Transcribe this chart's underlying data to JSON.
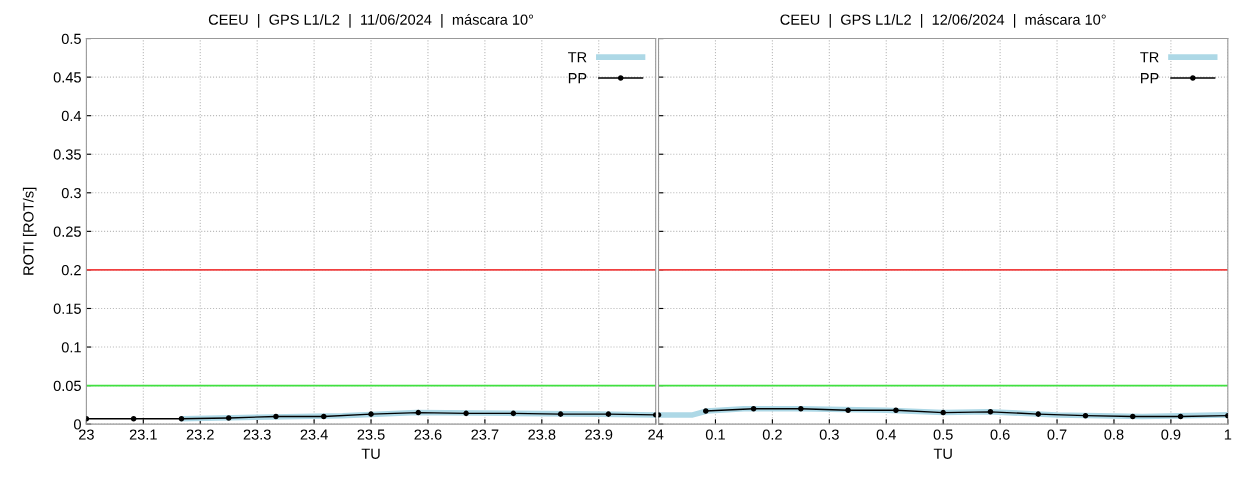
{
  "chart_data": [
    {
      "type": "line",
      "title": "CEEU  |  GPS L1/L2  |  11/06/2024  |  máscara 10°",
      "xlabel": "TU",
      "ylabel": "ROTI [ROT/s]",
      "xlim": [
        23,
        24
      ],
      "xticks": [
        23,
        23.1,
        23.2,
        23.3,
        23.4,
        23.5,
        23.6,
        23.7,
        23.8,
        23.9,
        24
      ],
      "ylim": [
        0,
        0.5
      ],
      "yticks": [
        0,
        0.05,
        0.1,
        0.15,
        0.2,
        0.25,
        0.3,
        0.35,
        0.4,
        0.45,
        0.5
      ],
      "grid": true,
      "legend": "top right",
      "ref_lines": [
        {
          "axis": "y",
          "value": 0.2,
          "color": "#f04040"
        },
        {
          "axis": "y",
          "value": 0.05,
          "color": "#40e040"
        }
      ],
      "series": [
        {
          "name": "TR",
          "color": "#add8e6",
          "marker": "none",
          "x": [
            23.17,
            23.3,
            23.45,
            23.58,
            23.75,
            23.9,
            24
          ],
          "values": [
            0.007,
            0.009,
            0.011,
            0.015,
            0.014,
            0.013,
            0.012
          ]
        },
        {
          "name": "PP",
          "color": "#000000",
          "marker": "circle",
          "x": [
            23.0,
            23.083,
            23.167,
            23.25,
            23.333,
            23.417,
            23.5,
            23.583,
            23.667,
            23.75,
            23.833,
            23.917,
            24.0
          ],
          "values": [
            0.007,
            0.007,
            0.007,
            0.008,
            0.01,
            0.01,
            0.013,
            0.015,
            0.014,
            0.014,
            0.013,
            0.013,
            0.012
          ]
        }
      ]
    },
    {
      "type": "line",
      "title": "CEEU  |  GPS L1/L2  |  12/06/2024  |  máscara 10°",
      "xlabel": "TU",
      "xlim": [
        0,
        1
      ],
      "xticks": [
        {
          "value": 0,
          "label": null
        },
        0.1,
        0.2,
        0.3,
        0.4,
        0.5,
        0.6,
        0.7,
        0.8,
        0.9,
        1
      ],
      "ylim": [
        0,
        0.5
      ],
      "yticks": [
        0,
        0.05,
        0.1,
        0.15,
        0.2,
        0.25,
        0.3,
        0.35,
        0.4,
        0.45,
        0.5
      ],
      "tick_labels": "x",
      "grid": true,
      "legend": "top right",
      "ref_lines": [
        {
          "axis": "y",
          "value": 0.2,
          "color": "#f04040"
        },
        {
          "axis": "y",
          "value": 0.05,
          "color": "#40e040"
        }
      ],
      "series": [
        {
          "name": "TR",
          "color": "#add8e6",
          "marker": "none",
          "x": [
            0,
            0.06,
            0.085,
            0.15,
            0.25,
            0.4,
            0.5,
            0.58,
            0.7,
            0.85,
            1
          ],
          "values": [
            0.012,
            0.012,
            0.017,
            0.02,
            0.02,
            0.018,
            0.015,
            0.016,
            0.012,
            0.01,
            0.012
          ]
        },
        {
          "name": "PP",
          "color": "#000000",
          "marker": "circle",
          "x": [
            0,
            0.04,
            0.083,
            0.167,
            0.25,
            0.333,
            0.417,
            0.5,
            0.583,
            0.667,
            0.75,
            0.833,
            0.917,
            1
          ],
          "values": [
            0.012,
            null,
            0.017,
            0.02,
            0.02,
            0.018,
            0.018,
            0.015,
            0.016,
            0.013,
            0.011,
            0.01,
            0.01,
            0.011
          ]
        }
      ]
    }
  ]
}
